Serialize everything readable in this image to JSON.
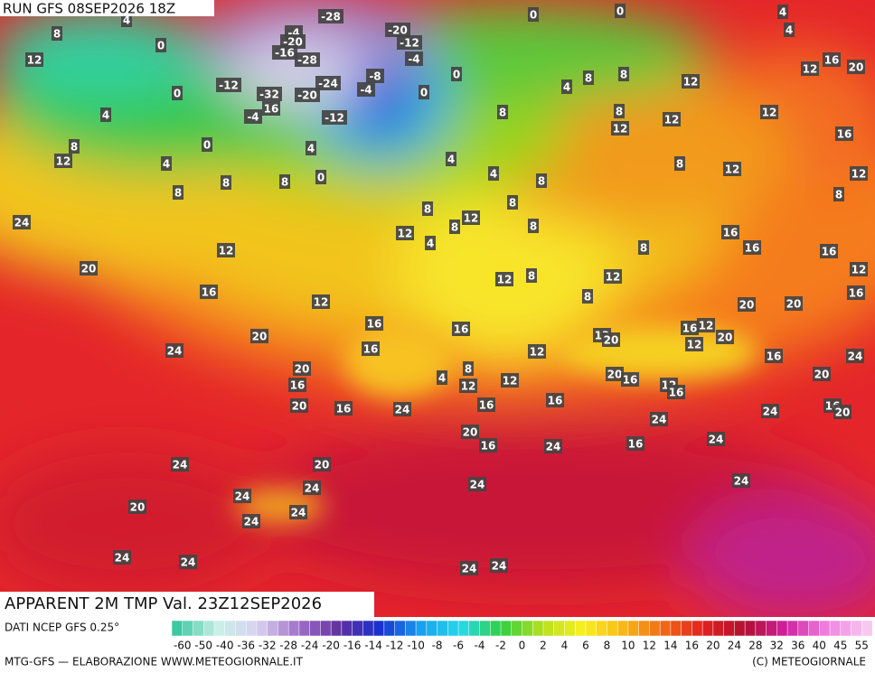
{
  "header": {
    "run": "RUN GFS 08SEP2026 18Z"
  },
  "map": {
    "labels": [
      4,
      -28,
      0,
      0,
      4,
      4,
      8,
      0,
      -4,
      -20,
      -20,
      -12,
      -4,
      -16,
      -28,
      12,
      0,
      -12,
      -32,
      -20,
      -24,
      -8,
      -4,
      16,
      -4,
      -12,
      0,
      0,
      4,
      8,
      8,
      12,
      16,
      20,
      12,
      4,
      8,
      8,
      12,
      12,
      12,
      16,
      8,
      0,
      4,
      12,
      4,
      0,
      4,
      4,
      8,
      8,
      12,
      12,
      8,
      8,
      8,
      8,
      8,
      8,
      12,
      8,
      8,
      24,
      12,
      4,
      16,
      16,
      8,
      16,
      12,
      20,
      12,
      8,
      12,
      12,
      16,
      12,
      8,
      20,
      20,
      16,
      16,
      16,
      20,
      16,
      12,
      12,
      20,
      20,
      12,
      16,
      24,
      12,
      16,
      24,
      20,
      8,
      4,
      20,
      16,
      20,
      16,
      12,
      12,
      12,
      16,
      20,
      16,
      24,
      16,
      16,
      16,
      20,
      24,
      24,
      20,
      16,
      24,
      16,
      24,
      24,
      20,
      24,
      24,
      24,
      24,
      20,
      24,
      24,
      24,
      24,
      24,
      24
    ]
  },
  "footer": {
    "title": "APPARENT 2M TMP Val. 23Z12SEP2026",
    "source": "DATI NCEP GFS 0.25°",
    "colorbar_ticks": [
      -60,
      -50,
      -40,
      -36,
      -32,
      -28,
      -24,
      -20,
      -16,
      -14,
      -12,
      -10,
      -8,
      -6,
      -4,
      -2,
      0,
      2,
      4,
      6,
      8,
      10,
      12,
      14,
      16,
      20,
      24,
      28,
      32,
      36,
      40,
      45,
      55
    ],
    "credit": "MTG-GFS — ELABORAZIONE WWW.METEOGIORNALE.IT",
    "copyright": "(C) METEOGIORNALE"
  }
}
